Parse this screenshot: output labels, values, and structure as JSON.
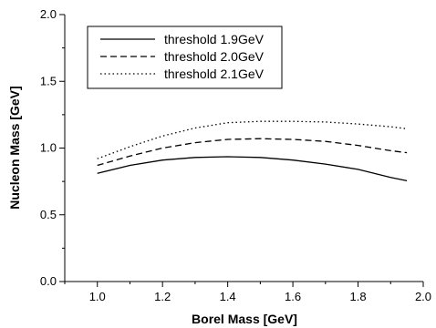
{
  "chart_data": {
    "type": "line",
    "xlabel": "Borel Mass [GeV]",
    "ylabel": "Nucleon Mass [GeV]",
    "xlim": [
      0.9,
      2.0
    ],
    "ylim": [
      0.0,
      2.0
    ],
    "x_ticks": [
      "1.0",
      "1.2",
      "1.4",
      "1.6",
      "1.8",
      "2.0"
    ],
    "y_ticks": [
      "0.0",
      "0.5",
      "1.0",
      "1.5",
      "2.0"
    ],
    "grid": false,
    "legend_position": "top-left",
    "x": [
      1.0,
      1.1,
      1.2,
      1.3,
      1.4,
      1.5,
      1.6,
      1.7,
      1.8,
      1.9,
      1.95
    ],
    "series": [
      {
        "name": "threshold 1.9GeV",
        "style": "solid",
        "values": [
          0.81,
          0.87,
          0.91,
          0.93,
          0.935,
          0.93,
          0.91,
          0.88,
          0.84,
          0.78,
          0.755
        ]
      },
      {
        "name": "threshold 2.0GeV",
        "style": "dashed",
        "values": [
          0.87,
          0.94,
          1.0,
          1.04,
          1.065,
          1.07,
          1.065,
          1.05,
          1.02,
          0.98,
          0.965
        ]
      },
      {
        "name": "threshold 2.1GeV",
        "style": "dotted",
        "values": [
          0.92,
          1.01,
          1.09,
          1.15,
          1.19,
          1.2,
          1.2,
          1.195,
          1.18,
          1.16,
          1.145
        ]
      }
    ]
  }
}
